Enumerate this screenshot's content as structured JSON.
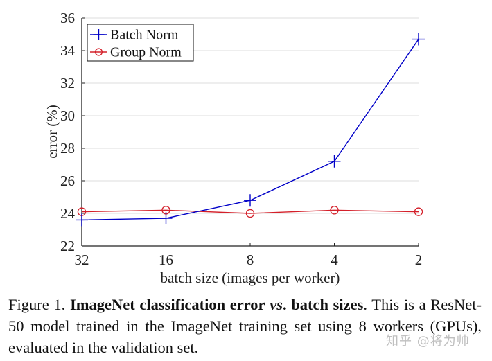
{
  "chart_data": {
    "type": "line",
    "title": "",
    "xlabel": "batch size (images per worker)",
    "ylabel": "error (%)",
    "categories": [
      "32",
      "16",
      "8",
      "4",
      "2"
    ],
    "x_tick_labels": [
      "32",
      "16",
      "8",
      "4",
      "2"
    ],
    "y_tick_labels": [
      "22",
      "24",
      "26",
      "28",
      "30",
      "32",
      "34",
      "36"
    ],
    "ylim": [
      22,
      36
    ],
    "grid": "horizontal",
    "legend_position": "upper left",
    "series": [
      {
        "name": "Batch Norm",
        "color": "#0000c8",
        "marker": "plus",
        "values": [
          23.6,
          23.7,
          24.8,
          27.2,
          34.7
        ]
      },
      {
        "name": "Group Norm",
        "color": "#d4202a",
        "marker": "circle",
        "values": [
          24.1,
          24.2,
          24.0,
          24.2,
          24.1
        ]
      }
    ]
  },
  "caption": {
    "label": "Figure 1.",
    "bold_part1": "ImageNet classification error",
    "italic_part": "vs",
    "bold_part2": ". batch sizes",
    "rest": ". This is a ResNet-50 model trained in the ImageNet training set using 8 workers (GPUs), evaluated in the validation set."
  },
  "watermark": "知乎 @将为帅"
}
